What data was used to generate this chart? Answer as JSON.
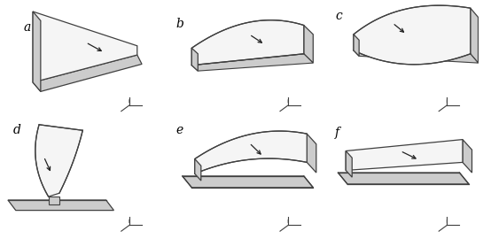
{
  "labels": [
    "a",
    "b",
    "c",
    "d",
    "e",
    "f"
  ],
  "background_color": "#ffffff",
  "line_color": "#404040",
  "top_fill": "#f5f5f5",
  "side_fill": "#cccccc",
  "arrow_color": "#222222",
  "label_fontsize": 10
}
